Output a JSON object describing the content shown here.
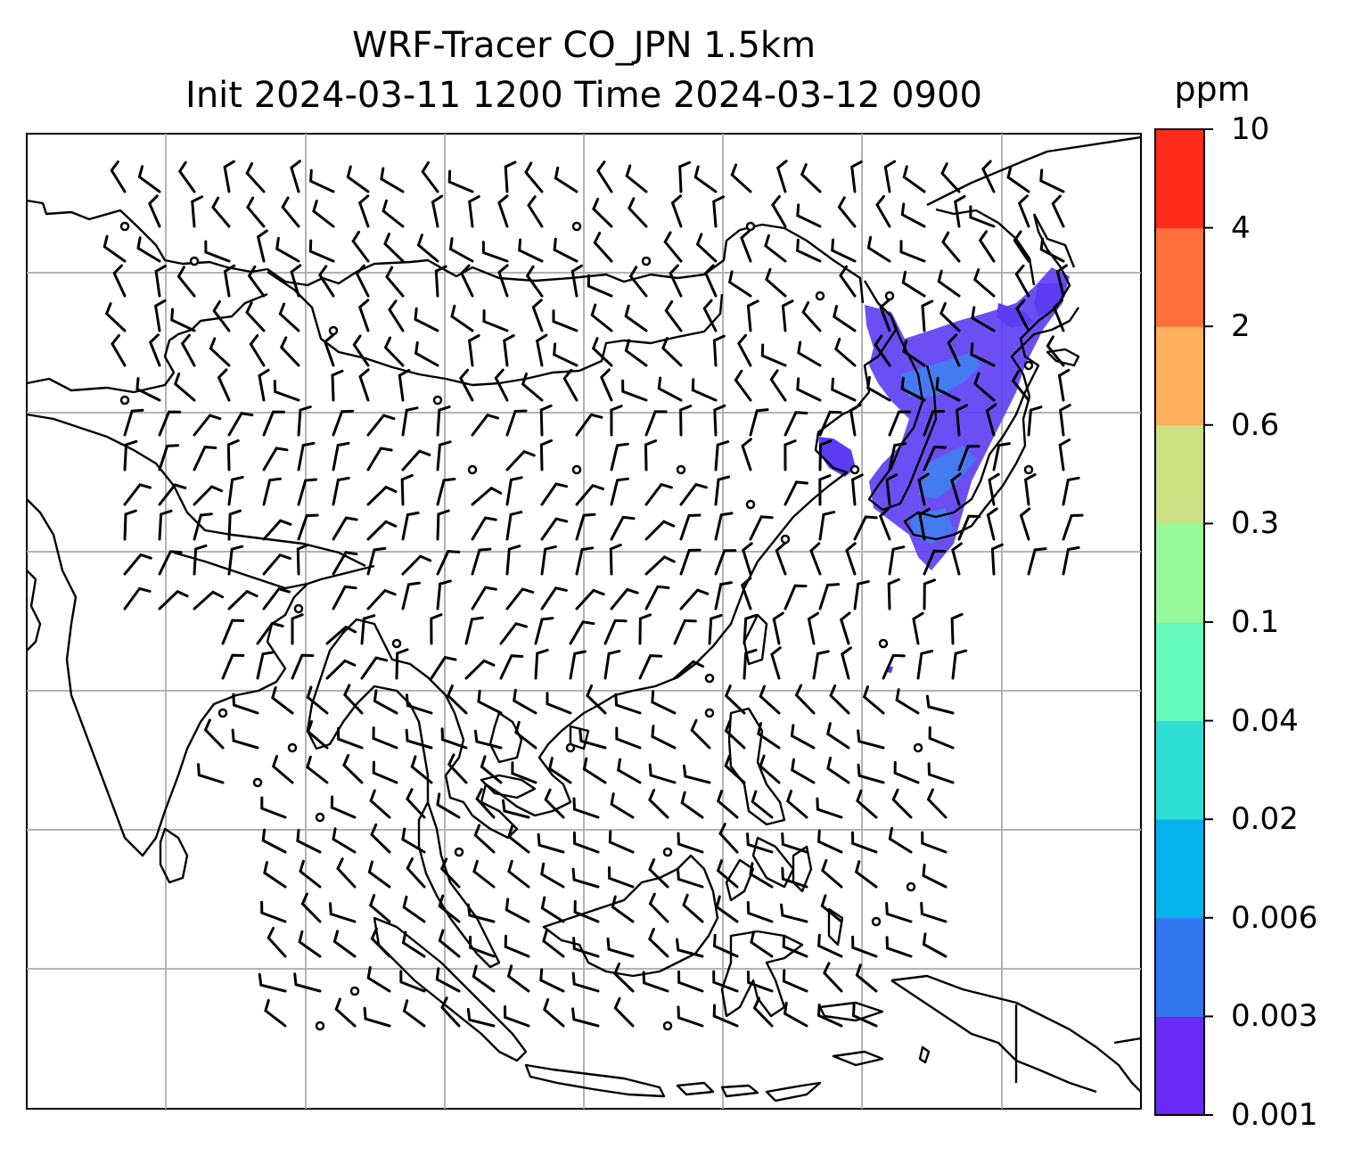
{
  "title": {
    "line1": "WRF-Tracer CO_JPN 1.5km",
    "line2": "Init 2024-03-11 1200 Time 2024-03-12 0900"
  },
  "colorbar": {
    "unit": "ppm",
    "levels": [
      "0.001",
      "0.003",
      "0.006",
      "0.02",
      "0.04",
      "0.1",
      "0.3",
      "0.6",
      "2",
      "4",
      "10"
    ],
    "colors": [
      "#6a2af5",
      "#3277f0",
      "#05b2ec",
      "#2fdfd4",
      "#68fbc0",
      "#98f99a",
      "#cde084",
      "#ffb05d",
      "#ff6f3b",
      "#fe2b1a"
    ]
  },
  "map": {
    "gridlines": true,
    "wind_barbs": true,
    "tracer_fill_color": "#5b3cf3"
  }
}
